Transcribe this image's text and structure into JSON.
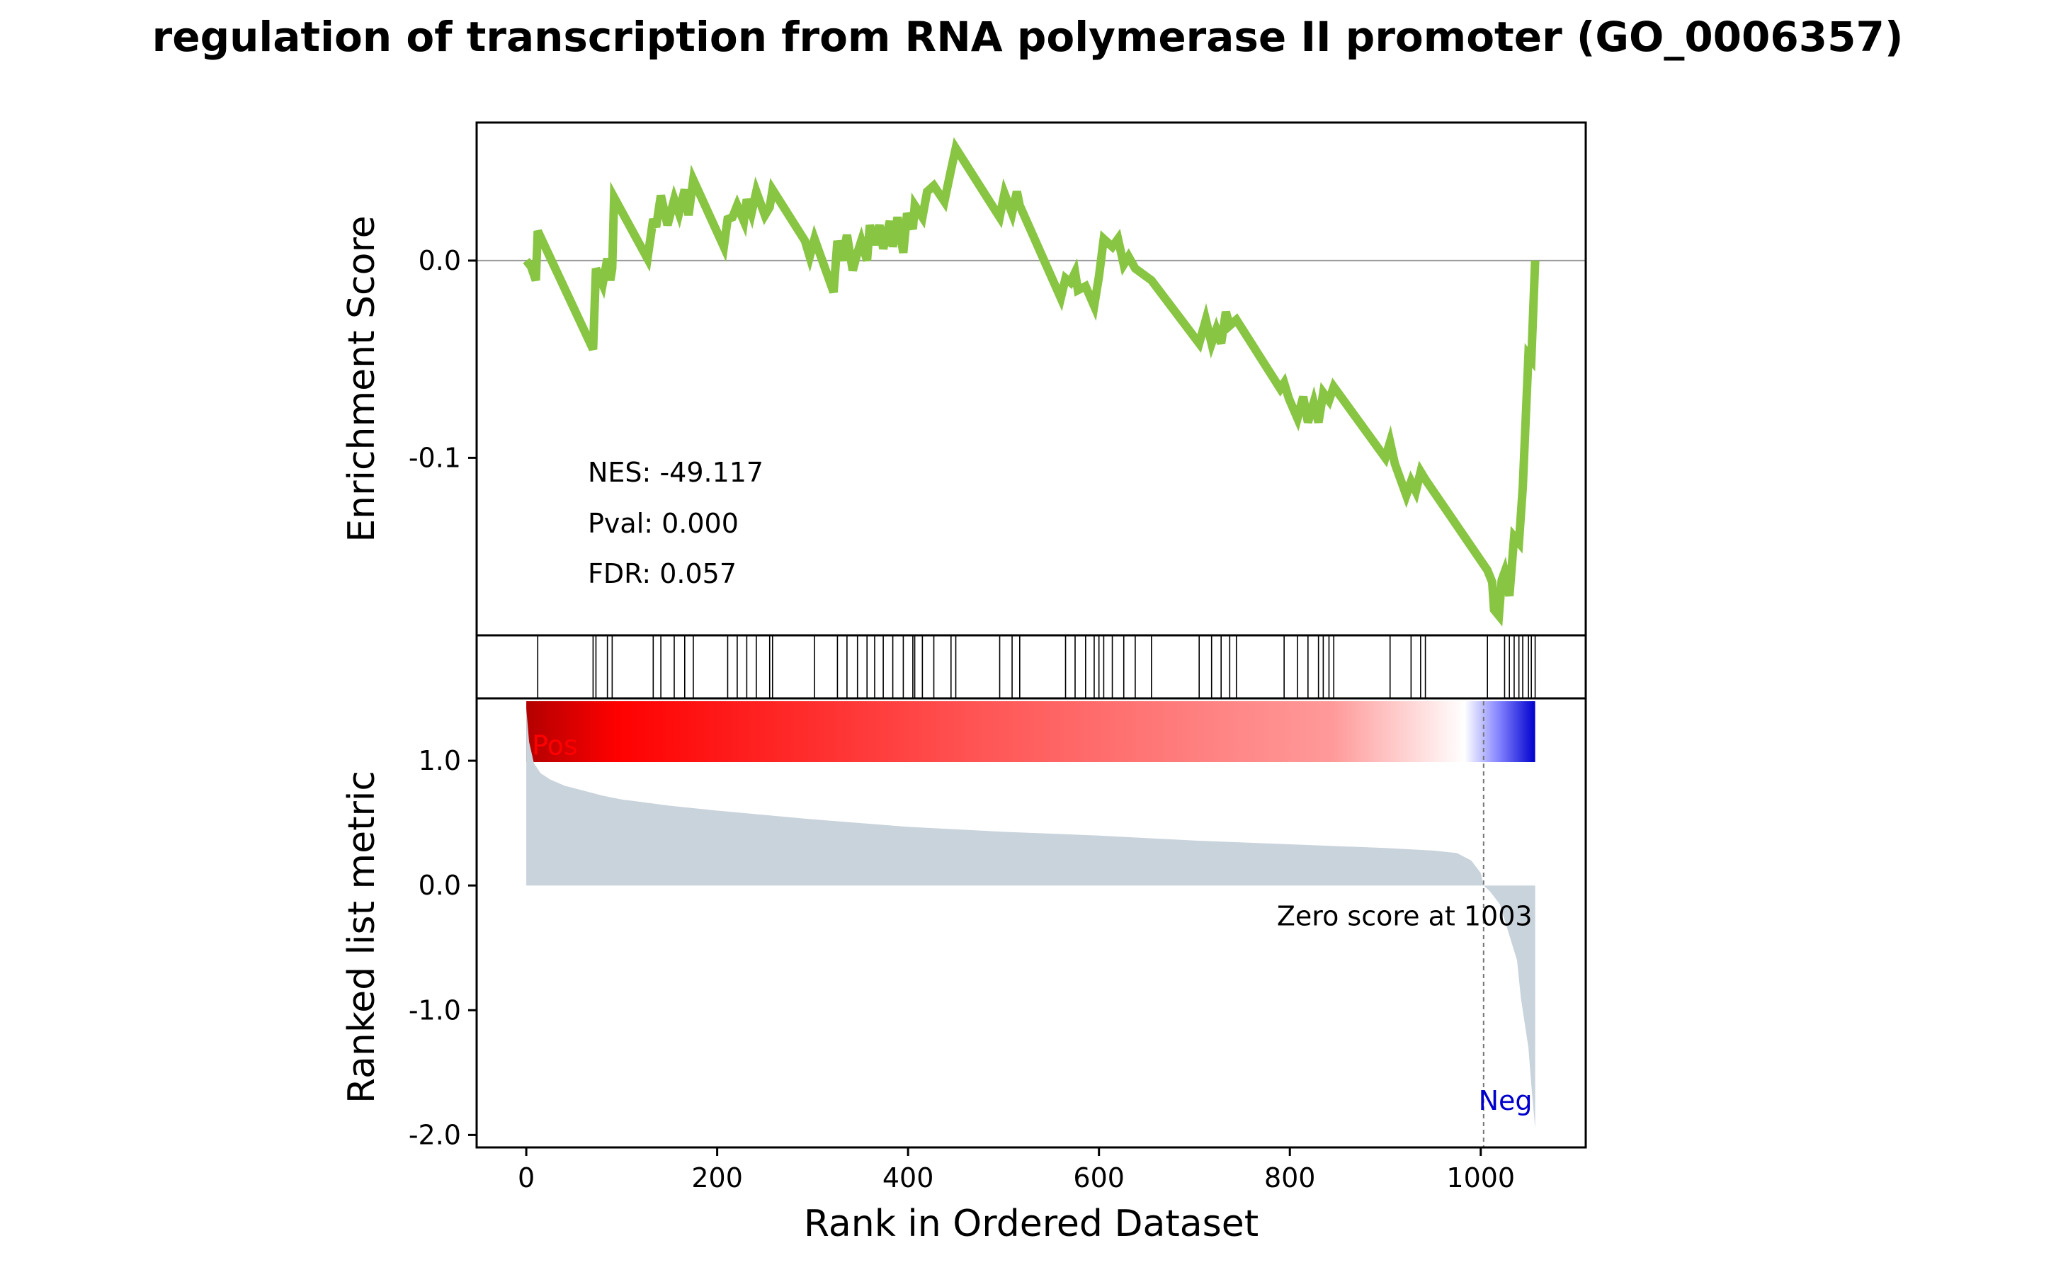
{
  "title": "regulation of transcription from RNA polymerase II promoter (GO_0006357)",
  "stats": {
    "nes": "NES: -49.117",
    "pval": "Pval: 0.000",
    "fdr": "FDR: 0.057"
  },
  "colors": {
    "es_line": "#88c542",
    "fill": "#c9d3dc",
    "pos": "#ff0000",
    "neg": "#0000cd",
    "axis": "#000000",
    "zero_line": "#999999"
  },
  "chart_data": [
    {
      "type": "line",
      "ylabel": "Enrichment Score",
      "ylim": [
        -0.19,
        0.07
      ],
      "xlim": [
        -52,
        1110
      ],
      "yticks": [
        0.0,
        -0.1
      ],
      "ytick_labels": [
        "0.0",
        "-0.1"
      ],
      "grid": false,
      "x": [
        0,
        5,
        10,
        12,
        70,
        73,
        80,
        85,
        88,
        90,
        92,
        127,
        133,
        136,
        141,
        148,
        155,
        160,
        166,
        170,
        175,
        207,
        211,
        216,
        221,
        228,
        231,
        236,
        241,
        250,
        255,
        258,
        292,
        297,
        302,
        322,
        326,
        331,
        336,
        342,
        347,
        351,
        357,
        360,
        365,
        370,
        374,
        381,
        384,
        389,
        395,
        399,
        405,
        407,
        415,
        420,
        427,
        438,
        445,
        450,
        492,
        496,
        501,
        509,
        514,
        517,
        560,
        565,
        570,
        575,
        578,
        586,
        595,
        600,
        605,
        614,
        620,
        626,
        631,
        638,
        655,
        705,
        712,
        718,
        723,
        728,
        733,
        737,
        744,
        790,
        794,
        799,
        808,
        814,
        819,
        825,
        830,
        835,
        841,
        846,
        900,
        905,
        910,
        922,
        927,
        932,
        937,
        942,
        1007,
        1012,
        1014,
        1019,
        1022,
        1025,
        1030,
        1035,
        1040,
        1044,
        1050,
        1053,
        1057
      ],
      "y": [
        0.0,
        -0.003,
        -0.01,
        0.015,
        -0.045,
        -0.004,
        -0.012,
        0.001,
        -0.01,
        -0.004,
        0.032,
        0.001,
        0.021,
        0.017,
        0.033,
        0.018,
        0.031,
        0.024,
        0.036,
        0.023,
        0.041,
        0.007,
        0.021,
        0.022,
        0.028,
        0.02,
        0.031,
        0.024,
        0.035,
        0.023,
        0.027,
        0.036,
        0.01,
        0.002,
        0.011,
        -0.016,
        0.01,
        0.0,
        0.013,
        -0.005,
        0.004,
        0.01,
        0.0,
        0.018,
        0.008,
        0.018,
        0.006,
        0.02,
        0.007,
        0.022,
        0.004,
        0.024,
        0.016,
        0.028,
        0.022,
        0.035,
        0.038,
        0.03,
        0.046,
        0.057,
        0.025,
        0.022,
        0.034,
        0.024,
        0.035,
        0.028,
        -0.019,
        -0.009,
        -0.011,
        -0.006,
        -0.015,
        -0.013,
        -0.023,
        -0.008,
        0.011,
        0.007,
        0.011,
        -0.002,
        0.002,
        -0.004,
        -0.01,
        -0.042,
        -0.03,
        -0.042,
        -0.035,
        -0.042,
        -0.026,
        -0.033,
        -0.03,
        -0.065,
        -0.062,
        -0.07,
        -0.08,
        -0.069,
        -0.082,
        -0.072,
        -0.082,
        -0.067,
        -0.071,
        -0.064,
        -0.1,
        -0.092,
        -0.103,
        -0.119,
        -0.112,
        -0.117,
        -0.107,
        -0.111,
        -0.157,
        -0.163,
        -0.177,
        -0.18,
        -0.162,
        -0.158,
        -0.17,
        -0.14,
        -0.143,
        -0.115,
        -0.048,
        -0.05,
        0.0
      ]
    },
    {
      "type": "scatter",
      "label": "gene hit positions",
      "x": [
        12,
        70,
        73,
        85,
        90,
        133,
        141,
        155,
        166,
        175,
        211,
        221,
        231,
        241,
        255,
        258,
        302,
        326,
        336,
        347,
        357,
        365,
        374,
        384,
        395,
        405,
        407,
        415,
        427,
        445,
        450,
        496,
        509,
        517,
        565,
        575,
        586,
        595,
        600,
        605,
        614,
        626,
        638,
        655,
        705,
        718,
        728,
        737,
        744,
        794,
        808,
        819,
        830,
        835,
        841,
        846,
        905,
        927,
        937,
        942,
        1007,
        1025,
        1030,
        1035,
        1040,
        1044,
        1050,
        1053,
        1057
      ]
    },
    {
      "type": "area",
      "ylabel": "Ranked list metric",
      "xlabel": "Rank in Ordered Dataset",
      "ylim": [
        -2.1,
        1.5
      ],
      "xlim": [
        -52,
        1110
      ],
      "xticks": [
        0,
        200,
        400,
        600,
        800,
        1000
      ],
      "xtick_labels": [
        "0",
        "200",
        "400",
        "600",
        "800",
        "1000"
      ],
      "yticks": [
        1.0,
        0.0,
        -1.0,
        -2.0
      ],
      "ytick_labels": [
        "1.0",
        "0.0",
        "-1.0",
        "-2.0"
      ],
      "x": [
        0,
        3,
        8,
        15,
        25,
        40,
        60,
        80,
        100,
        150,
        200,
        300,
        400,
        500,
        600,
        700,
        800,
        900,
        950,
        975,
        990,
        1000,
        1003,
        1010,
        1020,
        1030,
        1038,
        1042,
        1046,
        1050,
        1053,
        1057
      ],
      "y": [
        1.42,
        1.15,
        0.98,
        0.9,
        0.85,
        0.8,
        0.76,
        0.72,
        0.69,
        0.64,
        0.6,
        0.53,
        0.47,
        0.43,
        0.4,
        0.36,
        0.33,
        0.3,
        0.28,
        0.26,
        0.2,
        0.1,
        0.0,
        -0.05,
        -0.15,
        -0.4,
        -0.6,
        -0.9,
        -1.1,
        -1.3,
        -1.6,
        -1.95
      ],
      "annotations": {
        "pos": "Pos",
        "neg": "Neg",
        "zero": "Zero score at 1003"
      },
      "zero_cross": 1003
    }
  ]
}
